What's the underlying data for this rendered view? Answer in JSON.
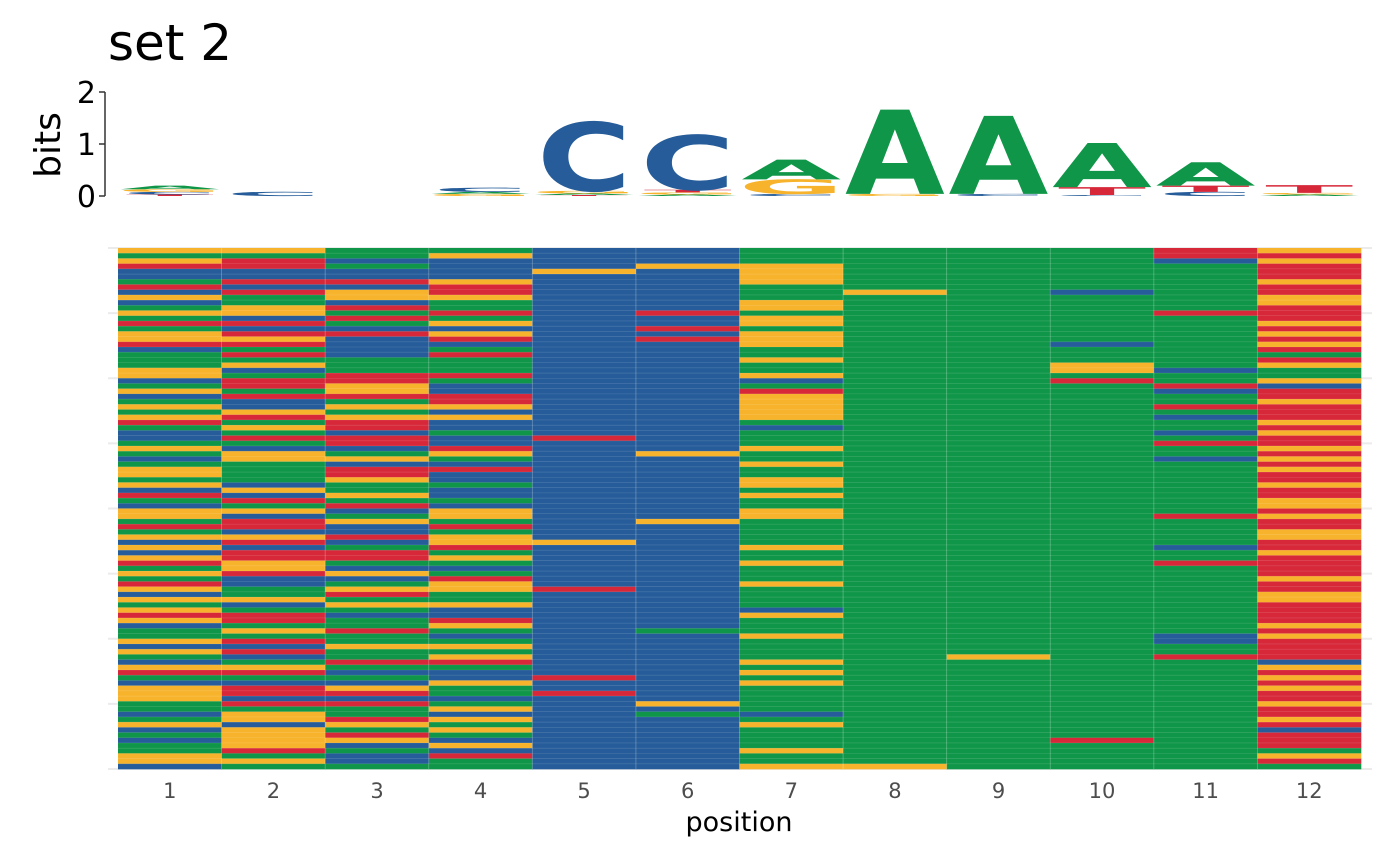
{
  "chart_data": [
    {
      "type": "sequence-logo",
      "title": "set 2",
      "ylabel": "bits",
      "ylim": [
        0,
        2
      ],
      "yticks": [
        "0",
        "1",
        "2"
      ],
      "positions": [
        "1",
        "2",
        "3",
        "4",
        "5",
        "6",
        "7",
        "8",
        "9",
        "10",
        "11",
        "12"
      ],
      "letters": [
        [
          {
            "base": "A",
            "bits": 0.07
          },
          {
            "base": "C",
            "bits": 0.05
          },
          {
            "base": "G",
            "bits": 0.05
          },
          {
            "base": "T",
            "bits": 0.03
          }
        ],
        [
          {
            "base": "C",
            "bits": 0.08
          }
        ],
        [],
        [
          {
            "base": "C",
            "bits": 0.08
          },
          {
            "base": "G",
            "bits": 0.04
          },
          {
            "base": "A",
            "bits": 0.04
          }
        ],
        [
          {
            "base": "C",
            "bits": 1.32
          },
          {
            "base": "G",
            "bits": 0.05
          },
          {
            "base": "A",
            "bits": 0.03
          },
          {
            "base": "T",
            "bits": 0.02
          }
        ],
        [
          {
            "base": "C",
            "bits": 1.05
          },
          {
            "base": "T",
            "bits": 0.05
          },
          {
            "base": "G",
            "bits": 0.04
          },
          {
            "base": "A",
            "bits": 0.03
          }
        ],
        [
          {
            "base": "A",
            "bits": 0.38
          },
          {
            "base": "G",
            "bits": 0.28
          },
          {
            "base": "C",
            "bits": 0.04
          }
        ],
        [
          {
            "base": "A",
            "bits": 1.62
          },
          {
            "base": "G",
            "bits": 0.04
          }
        ],
        [
          {
            "base": "A",
            "bits": 1.5
          },
          {
            "base": "C",
            "bits": 0.04
          }
        ],
        [
          {
            "base": "A",
            "bits": 0.85
          },
          {
            "base": "T",
            "bits": 0.15
          },
          {
            "base": "C",
            "bits": 0.02
          }
        ],
        [
          {
            "base": "A",
            "bits": 0.45
          },
          {
            "base": "T",
            "bits": 0.12
          },
          {
            "base": "C",
            "bits": 0.08
          }
        ],
        [
          {
            "base": "T",
            "bits": 0.15
          },
          {
            "base": "A",
            "bits": 0.03
          },
          {
            "base": "G",
            "bits": 0.03
          }
        ]
      ]
    },
    {
      "type": "heatmap",
      "xlabel": "position",
      "x": [
        "1",
        "2",
        "3",
        "4",
        "5",
        "6",
        "7",
        "8",
        "9",
        "10",
        "11",
        "12"
      ],
      "n_sequences": 100,
      "colors": {
        "A": "#109648",
        "C": "#255c99",
        "G": "#f7b32b",
        "T": "#d62839"
      },
      "sequence_rows": [
        "GGAACCAAAATG",
        "AAAGCCAAAATT",
        "GTCCCCAAAACG",
        "TTACCGGAAAAT",
        "CCCCGCGAAAAT",
        "CCCCCCGAAAAT",
        "ATTGCCGAAAAG",
        "TCCTCCAAAAAT",
        "CTGTCCAGACAT",
        "GAGGCCAAAAAG",
        "CACACCGAAAAG",
        "AGTACCGAAAAT",
        "GGATCTAAAATT",
        "ACTACCGAAAAT",
        "TTAGCCGAAAAG",
        "ACCCCTAAAAAT",
        "GTTGCCGAAAAG",
        "GGCTCTGAAAAT",
        "TTCCCCGAACAG",
        "CACACCAAAAAT",
        "ATCTCCAAAAAA",
        "AAAACCGAAAAT",
        "AGAACCAAAGAG",
        "GCAACCAAAGCA",
        "GATTCCGAAAAA",
        "CTTACCCAATAG",
        "ATGCCCAAAATC",
        "GAGCCCTAAACT",
        "CTTTCCGAAAAT",
        "ACATCCGAAAAG",
        "GCGGCCGAAATT",
        "AGACCCGAAAAT",
        "GTGGCCGAAACT",
        "TATCCCAAAAAG",
        "AGTCCCCAAAAT",
        "CACACCAAAACG",
        "CTTCTCAAAAAT",
        "AATCCCAAAATT",
        "GCCTCCGAAAAG",
        "AGAGCGAAAAAT",
        "CGGACCAAAACG",
        "AACCCCGAAAAT",
        "GATTCCAAAAAG",
        "GATCCCAAAAAT",
        "AAGCCCGAAAAT",
        "GCAACCGAAAAG",
        "CGACCCAAAAAT",
        "TCGCCCGAAAAT",
        "ATAACCAAAAAG",
        "CATCCCAAAAAG",
        "GGCGCCGAAAAT",
        "GCAGCCGAAATG",
        "ATGACGAAAAAT",
        "TTCTCCAAAAAT",
        "ACCACCAAAAAG",
        "GGTGCCAAAAAG",
        "CTCGGCAAAAAT",
        "GCATCCGAAACT",
        "CTTACCAAAAAG",
        "GTTGCCAAAAAT",
        "TGAACCGAAATT",
        "AGCCCCAAAAAT",
        "GTGACCAAAAAT",
        "ACCTCCAAAAAG",
        "TCAGCCGAAAAT",
        "GAGGTCAAAAAT",
        "CATACCAAAAAG",
        "GGAACCAAAAAG",
        "ACGGCCAAAAAT",
        "GAACCCCAAAAT",
        "TTCCCCGAAAAT",
        "GTATCCAAAAAT",
        "CAAGCCAAAAAG",
        "AGTACAAAAAAT",
        "AAACCCGAAACG",
        "GTAACCAAAACT",
        "CCGGCCAAAAAT",
        "GTAACCAAAAAT",
        "ACAGCCAAGATT",
        "CATTCCGAAAAC",
        "GGAACCAAAAAG",
        "TTCCCCGAAAAT",
        "AAACTCAAAAAG",
        "CCCGCCGAAAAT",
        "GTGACCAAAAAG",
        "GTTATCAAAAAT",
        "GCCCCCAAAAAT",
        "ATTACGAAAAAG",
        "AAAGCCAAAAAT",
        "CGACCACAAAAT",
        "AGTGCCAAAAAG",
        "GCGACCGAAAAT",
        "CGAGCCAAAAAC",
        "AGTACCAAAAAT",
        "CGGCCCAAATAT",
        "AGCGCCAAAAAT",
        "ATACCCGAAAAA",
        "GACTCCAAAAAG",
        "GGCACCAAAAAT",
        "CAAACCGGAAAA"
      ]
    }
  ]
}
